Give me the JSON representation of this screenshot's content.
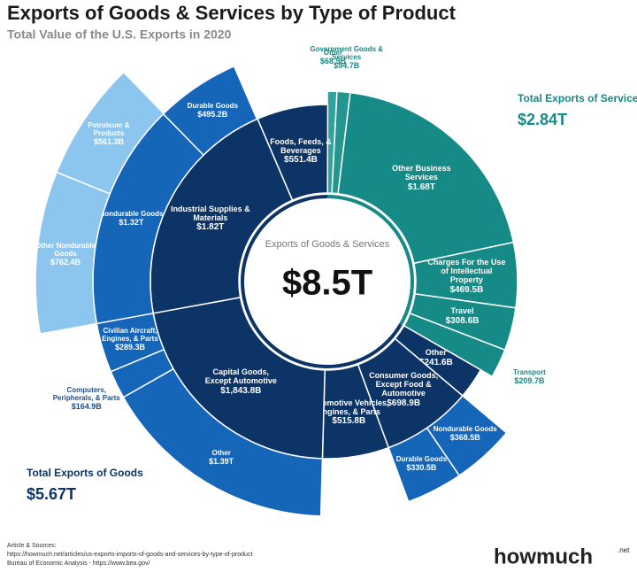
{
  "chart_data": {
    "type": "sunburst",
    "title": "Exports of Goods & Services by Type of Product",
    "subtitle": "Total Value of the U.S. Exports in 2020",
    "center_title": "Exports of Goods & Services",
    "total": 8500,
    "total_label": "$8.5T",
    "groups": [
      {
        "name": "Total Exports of Services",
        "value": 2840,
        "value_label": "$2.84T",
        "color": "#168a86"
      },
      {
        "name": "Total Exports of Goods",
        "value": 5670,
        "value_label": "$5.67T",
        "color": "#0d3466"
      }
    ],
    "segments": [
      {
        "name": "Other",
        "value": 68.9,
        "value_label": "$68.9B",
        "color": "#2fa39d"
      },
      {
        "name": "Government Goods & Services",
        "value": 94.7,
        "value_label": "$94.7B",
        "color": "#24968f"
      },
      {
        "name": "Other Business Services",
        "value": 1680,
        "value_label": "$1.68T",
        "color": "#168a86"
      },
      {
        "name": "Charges For the Use of Intellectual Property",
        "value": 469.5,
        "value_label": "$469.5B",
        "color": "#168a86"
      },
      {
        "name": "Travel",
        "value": 308.6,
        "value_label": "$308.6B",
        "color": "#168a86"
      },
      {
        "name": "Transport",
        "value": 209.7,
        "value_label": "$209.7B",
        "color": "#168a86"
      },
      {
        "name": "Other",
        "value": 241.6,
        "value_label": "$241.6B",
        "color": "#0d3466"
      },
      {
        "name": "Consumer Goods, Except Food & Automotive",
        "value": 698.9,
        "value_label": "$698.9B",
        "color": "#0d3466",
        "children": [
          {
            "name": "Nondurable Goods",
            "value": 368.5,
            "value_label": "$368.5B",
            "color": "#1565b8"
          },
          {
            "name": "Durable Goods",
            "value": 330.5,
            "value_label": "$330.5B",
            "color": "#1565b8"
          }
        ]
      },
      {
        "name": "Automotive Vehicles, Engines, & Parts",
        "value": 515.8,
        "value_label": "$515.8B",
        "color": "#0d3466"
      },
      {
        "name": "Capital Goods, Except Automotive",
        "value": 1843.8,
        "value_label": "$1,843.8B",
        "color": "#0d3466",
        "children": [
          {
            "name": "Other",
            "value": 1390,
            "value_label": "$1.39T",
            "color": "#1565b8"
          },
          {
            "name": "Computers, Peripherals, & Parts",
            "value": 164.9,
            "value_label": "$164.9B",
            "color": "#1565b8"
          },
          {
            "name": "Civilian Aircraft, Engines, & Parts",
            "value": 289.3,
            "value_label": "$289.3B",
            "color": "#1565b8"
          }
        ]
      },
      {
        "name": "Industrial Supplies & Materials",
        "value": 1820,
        "value_label": "$1.82T",
        "color": "#0d3466",
        "children": [
          {
            "name": "Nondurable Goods",
            "value": 1320,
            "value_label": "$1.32T",
            "color": "#1565b8",
            "children": [
              {
                "name": "Other Nondurable Goods",
                "value": 762.4,
                "value_label": "$762.4B",
                "color": "#8cc6ef"
              },
              {
                "name": "Petroleum & Products",
                "value": 561.3,
                "value_label": "$561.3B",
                "color": "#8cc6ef"
              }
            ]
          },
          {
            "name": "Durable Goods",
            "value": 495.2,
            "value_label": "$495.2B",
            "color": "#1565b8"
          }
        ]
      },
      {
        "name": "Foods, Feeds, & Beverages",
        "value": 551.4,
        "value_label": "$551.4B",
        "color": "#0d3466"
      }
    ],
    "sources_title": "Article & Sources:",
    "sources": [
      "https://howmuch.net/articles/us-exports-imports-of-goods-and-services-by-type-of-product",
      "Bureau of Economic Analysis - https://www.bea.gov/"
    ],
    "brand": "howmuch",
    "brand_suffix": ".net"
  }
}
